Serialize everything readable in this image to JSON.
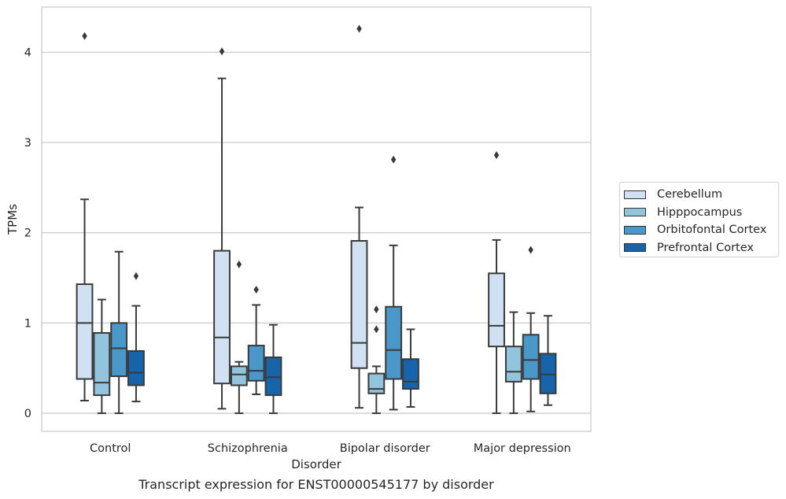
{
  "chart_data": {
    "type": "box",
    "x_axis_label": "Disorder",
    "y_axis_label": "TPMs",
    "y_ticks": [
      0,
      1,
      2,
      3,
      4
    ],
    "ylim": [
      -0.2,
      4.5
    ],
    "categories": [
      "Control",
      "Schizophrenia",
      "Bipolar disorder",
      "Major depression"
    ],
    "grid": "horizontal",
    "legend_position": "right",
    "series": [
      {
        "name": "Cerebellum",
        "color": "#cfe1f2",
        "boxes": [
          {
            "min": 0.14,
            "q1": 0.38,
            "median": 1.0,
            "q3": 1.43,
            "max": 2.37,
            "outliers": [
              4.18
            ]
          },
          {
            "min": 0.05,
            "q1": 0.33,
            "median": 0.84,
            "q3": 1.8,
            "max": 3.71,
            "outliers": [
              4.01
            ]
          },
          {
            "min": 0.06,
            "q1": 0.5,
            "median": 0.78,
            "q3": 1.91,
            "max": 2.28,
            "outliers": [
              4.26
            ]
          },
          {
            "min": 0.0,
            "q1": 0.74,
            "median": 0.97,
            "q3": 1.55,
            "max": 1.92,
            "outliers": [
              2.86
            ]
          }
        ]
      },
      {
        "name": "Hipppocampus",
        "color": "#93c4de",
        "boxes": [
          {
            "min": 0.0,
            "q1": 0.2,
            "median": 0.34,
            "q3": 0.89,
            "max": 1.26,
            "outliers": []
          },
          {
            "min": 0.0,
            "q1": 0.31,
            "median": 0.43,
            "q3": 0.52,
            "max": 0.57,
            "outliers": [
              1.65
            ]
          },
          {
            "min": 0.0,
            "q1": 0.22,
            "median": 0.27,
            "q3": 0.44,
            "max": 0.52,
            "outliers": [
              1.15,
              0.93
            ]
          },
          {
            "min": 0.0,
            "q1": 0.35,
            "median": 0.46,
            "q3": 0.74,
            "max": 1.12,
            "outliers": []
          }
        ]
      },
      {
        "name": "Orbitofontal Cortex",
        "color": "#4a98c9",
        "boxes": [
          {
            "min": 0.0,
            "q1": 0.41,
            "median": 0.72,
            "q3": 1.0,
            "max": 1.79,
            "outliers": []
          },
          {
            "min": 0.21,
            "q1": 0.36,
            "median": 0.47,
            "q3": 0.75,
            "max": 1.2,
            "outliers": [
              1.37
            ]
          },
          {
            "min": 0.04,
            "q1": 0.38,
            "median": 0.7,
            "q3": 1.18,
            "max": 1.86,
            "outliers": [
              2.81
            ]
          },
          {
            "min": 0.02,
            "q1": 0.38,
            "median": 0.59,
            "q3": 0.87,
            "max": 1.11,
            "outliers": [
              1.81
            ]
          }
        ]
      },
      {
        "name": "Prefrontal Cortex",
        "color": "#1764ab",
        "boxes": [
          {
            "min": 0.13,
            "q1": 0.31,
            "median": 0.45,
            "q3": 0.69,
            "max": 1.19,
            "outliers": [
              1.52
            ]
          },
          {
            "min": 0.0,
            "q1": 0.2,
            "median": 0.4,
            "q3": 0.62,
            "max": 0.98,
            "outliers": []
          },
          {
            "min": 0.07,
            "q1": 0.27,
            "median": 0.35,
            "q3": 0.6,
            "max": 0.93,
            "outliers": []
          },
          {
            "min": 0.09,
            "q1": 0.22,
            "median": 0.43,
            "q3": 0.66,
            "max": 1.08,
            "outliers": []
          }
        ]
      }
    ]
  },
  "caption": "Transcript expression for ENST00000545177 by disorder"
}
